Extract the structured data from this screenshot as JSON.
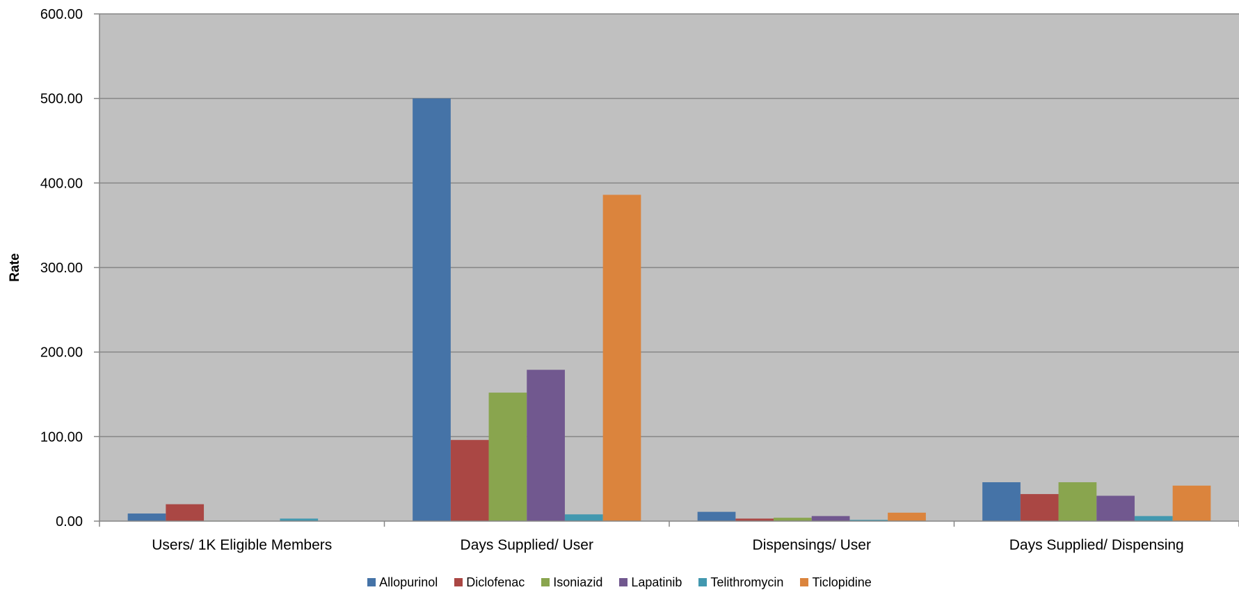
{
  "chart_data": {
    "type": "bar",
    "title": "",
    "xlabel": "",
    "ylabel": "Rate",
    "ylim": [
      0,
      600
    ],
    "yticks": [
      "0.00",
      "100.00",
      "200.00",
      "300.00",
      "400.00",
      "500.00",
      "600.00"
    ],
    "grid": true,
    "legend_position": "bottom",
    "background": "#c0c0c0",
    "categories": [
      "Users/ 1K Eligible Members",
      "Days Supplied/ User",
      "Dispensings/ User",
      "Days Supplied/ Dispensing"
    ],
    "series": [
      {
        "name": "Allopurinol",
        "color": "#4573a7",
        "values": [
          9,
          500,
          11,
          46
        ]
      },
      {
        "name": "Diclofenac",
        "color": "#aa4744",
        "values": [
          20,
          96,
          3,
          32
        ]
      },
      {
        "name": "Isoniazid",
        "color": "#89a54e",
        "values": [
          0.5,
          152,
          4,
          46
        ]
      },
      {
        "name": "Lapatinib",
        "color": "#71588f",
        "values": [
          0.2,
          179,
          6,
          30
        ]
      },
      {
        "name": "Telithromycin",
        "color": "#4298af",
        "values": [
          3,
          8,
          1.5,
          6
        ]
      },
      {
        "name": "Ticlopidine",
        "color": "#db843d",
        "values": [
          0.3,
          386,
          10,
          42
        ]
      }
    ]
  }
}
